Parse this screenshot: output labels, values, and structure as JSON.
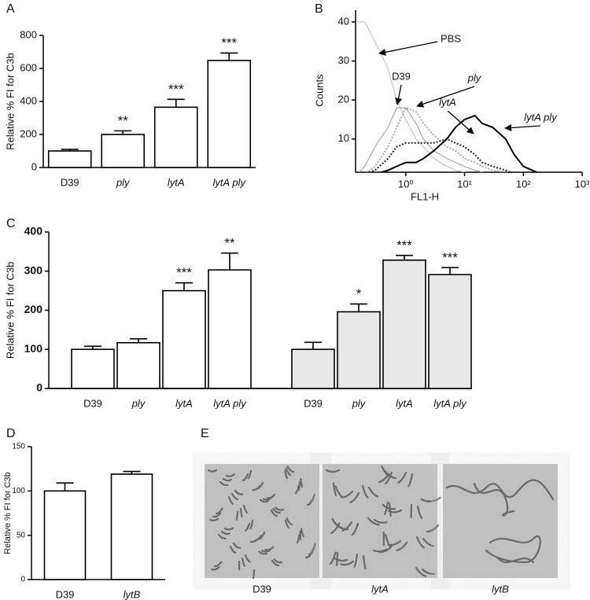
{
  "chart_data": [
    {
      "type": "bar",
      "panel": "A",
      "ylabel": "Relative % FI for C3b",
      "categories": [
        "D39",
        "ply",
        "lytA",
        "lytA ply"
      ],
      "italic_categories": [
        false,
        true,
        true,
        true
      ],
      "values": [
        100,
        200,
        365,
        648
      ],
      "errors": [
        10,
        22,
        48,
        45
      ],
      "significance": [
        null,
        "**",
        "***",
        "***"
      ],
      "color": "#ffffff",
      "ylim": [
        0,
        800
      ],
      "yticks": [
        0,
        200,
        400,
        600,
        800
      ]
    },
    {
      "type": "line",
      "panel": "B",
      "xlabel": "FL1-H",
      "ylabel": "Counts",
      "log_x": true,
      "x": [
        0.15,
        0.2,
        0.3,
        0.5,
        0.7,
        1,
        1.5,
        2,
        3,
        5,
        7,
        10,
        15,
        20,
        30,
        50,
        70,
        100,
        200,
        500,
        1000
      ],
      "series": [
        {
          "name": "PBS",
          "color": "#bbbbbb",
          "style": "solid",
          "width": 1,
          "values": [
            40,
            40,
            35,
            28,
            20,
            15,
            10,
            8,
            5,
            3,
            2,
            1.5,
            1,
            0.5,
            0.5,
            0.3,
            0.2,
            0.2,
            0.1,
            0,
            0
          ]
        },
        {
          "name": "D39",
          "color": "#999999",
          "style": "solid",
          "width": 1,
          "values": [
            1,
            3,
            8,
            13,
            18,
            18,
            14,
            10,
            7,
            5,
            4,
            3,
            2,
            1.5,
            1,
            0.8,
            0.5,
            0.3,
            0.2,
            0,
            0
          ]
        },
        {
          "name": "ply",
          "color": "#aaaaaa",
          "style": "dotted",
          "width": 2,
          "values": [
            0.5,
            1,
            3,
            8,
            13,
            18,
            17,
            14,
            11,
            8,
            7,
            5,
            4,
            3,
            2,
            1.5,
            1,
            0.5,
            0.3,
            0,
            0
          ]
        },
        {
          "name": "lytA",
          "color": "#222222",
          "style": "dotted",
          "width": 2,
          "values": [
            0.5,
            1,
            2,
            5,
            8,
            9,
            9,
            9,
            9,
            10,
            9,
            8,
            6,
            4,
            3,
            2,
            1,
            0.5,
            0.3,
            0,
            0
          ]
        },
        {
          "name": "lytA ply",
          "color": "#000000",
          "style": "solid",
          "width": 2,
          "values": [
            0,
            0.5,
            1,
            2,
            3,
            4,
            4,
            5,
            7,
            10,
            13,
            15,
            16,
            14,
            13,
            10,
            6,
            3,
            1,
            0.3,
            0
          ]
        }
      ],
      "xlim": [
        0.14,
        1000
      ],
      "xticks": [
        {
          "value": 1,
          "label": "10⁰"
        },
        {
          "value": 10,
          "label": "10¹"
        },
        {
          "value": 100,
          "label": "10²"
        },
        {
          "value": 1000,
          "label": "10³"
        }
      ],
      "ylim": [
        1.5,
        43
      ],
      "yticks": [
        10,
        20,
        30,
        40
      ]
    },
    {
      "type": "grouped_bar",
      "panel": "C",
      "ylabel": "Relative % FI for C3b",
      "groups": [
        {
          "categories": [
            "D39",
            "ply",
            "lytA",
            "lytA ply"
          ],
          "italic_categories": [
            false,
            true,
            true,
            true
          ],
          "values": [
            100,
            117,
            250,
            303
          ],
          "errors": [
            8,
            10,
            20,
            43
          ],
          "significance": [
            null,
            null,
            "***",
            "**"
          ],
          "color": "#ffffff"
        },
        {
          "categories": [
            "D39",
            "ply",
            "lytA",
            "lytA ply"
          ],
          "italic_categories": [
            false,
            true,
            true,
            true
          ],
          "values": [
            100,
            196,
            328,
            291
          ],
          "errors": [
            18,
            20,
            12,
            18
          ],
          "significance": [
            null,
            "*",
            "***",
            "***"
          ],
          "color": "#e8e8e8"
        }
      ],
      "ylim": [
        0,
        400
      ],
      "yticks": [
        0,
        100,
        200,
        300,
        400
      ]
    },
    {
      "type": "bar",
      "panel": "D",
      "ylabel": "Relative % FI for C3b",
      "categories": [
        "D39",
        "lytB"
      ],
      "italic_categories": [
        false,
        true
      ],
      "values": [
        100,
        119
      ],
      "errors": [
        9,
        3
      ],
      "significance": [
        null,
        null
      ],
      "color": "#ffffff",
      "ylim": [
        0,
        150
      ],
      "yticks": [
        0,
        50,
        100,
        150
      ]
    },
    {
      "type": "images",
      "panel": "E",
      "captions": [
        "D39",
        "lytA",
        "lytB"
      ],
      "italic_captions": [
        false,
        true,
        true
      ]
    }
  ]
}
